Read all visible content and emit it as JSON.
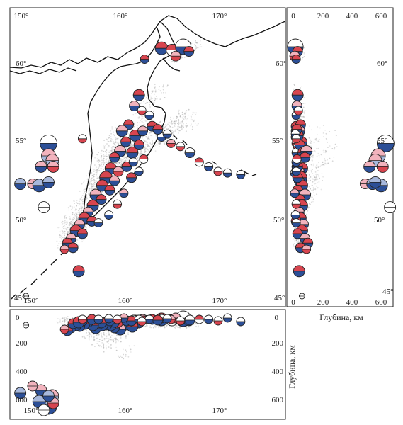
{
  "map_panel": {
    "lon_ticks_top": [
      "150°",
      "160°",
      "170°"
    ],
    "lon_ticks_bottom": [
      "150°",
      "160°",
      "170°"
    ],
    "lat_ticks_left": [
      "60°",
      "55°",
      "50°",
      "45°"
    ]
  },
  "depth_lat_panel": {
    "depth_ticks_top": [
      "0",
      "200",
      "400",
      "600"
    ],
    "depth_ticks_bottom": [
      "0",
      "200",
      "400",
      "600"
    ],
    "lat_ticks_right": [
      "60°",
      "55°",
      "50°",
      "45°"
    ],
    "xlabel": "Глубина, км"
  },
  "depth_lon_panel": {
    "depth_ticks_left": [
      "0",
      "200",
      "400",
      "600"
    ],
    "depth_ticks_right": [
      "0",
      "200",
      "400",
      "600"
    ],
    "lon_ticks_bottom": [
      "150°",
      "160°",
      "170°"
    ],
    "ylabel": "Глубина, км"
  },
  "colors": {
    "red": "#d7454f",
    "pink": "#f2b3bd",
    "blue": "#2c4f97",
    "lightblue": "#a7b8dc",
    "white": "#ffffff",
    "seismicity": "#9a9a9a",
    "coast": "#111111"
  },
  "mechanisms": [
    {
      "lon": 165.0,
      "lat": 60.9,
      "d": 20,
      "top": "red",
      "bot": "blue",
      "s": 9
    },
    {
      "lon": 166.1,
      "lat": 60.8,
      "d": 25,
      "top": "red",
      "bot": "white",
      "s": 8
    },
    {
      "lon": 167.3,
      "lat": 61.0,
      "d": 15,
      "top": "white",
      "bot": "blue",
      "s": 11
    },
    {
      "lon": 167.9,
      "lat": 60.7,
      "d": 30,
      "top": "red",
      "bot": "blue",
      "s": 7
    },
    {
      "lon": 166.5,
      "lat": 60.4,
      "d": 10,
      "top": "pink",
      "bot": "red",
      "s": 7
    },
    {
      "lon": 163.2,
      "lat": 60.2,
      "d": 20,
      "top": "red",
      "bot": "blue",
      "s": 6
    },
    {
      "lon": 162.6,
      "lat": 57.9,
      "d": 30,
      "top": "red",
      "bot": "blue",
      "s": 8
    },
    {
      "lon": 162.1,
      "lat": 57.2,
      "d": 25,
      "top": "pink",
      "bot": "blue",
      "s": 7
    },
    {
      "lon": 164.0,
      "lat": 55.9,
      "d": 20,
      "top": "red",
      "bot": "blue",
      "s": 7
    },
    {
      "lon": 165.0,
      "lat": 55.2,
      "d": 15,
      "top": "white",
      "bot": "blue",
      "s": 6
    },
    {
      "lon": 166.0,
      "lat": 54.8,
      "d": 20,
      "top": "pink",
      "bot": "red",
      "s": 6
    },
    {
      "lon": 167.0,
      "lat": 54.6,
      "d": 30,
      "top": "white",
      "bot": "red",
      "s": 6
    },
    {
      "lon": 168.0,
      "lat": 54.2,
      "d": 25,
      "top": "white",
      "bot": "blue",
      "s": 7
    },
    {
      "lon": 169.0,
      "lat": 53.6,
      "d": 20,
      "top": "red",
      "bot": "white",
      "s": 6
    },
    {
      "lon": 170.0,
      "lat": 53.3,
      "d": 20,
      "top": "white",
      "bot": "blue",
      "s": 6
    },
    {
      "lon": 171.0,
      "lat": 53.0,
      "d": 30,
      "top": "white",
      "bot": "red",
      "s": 6
    },
    {
      "lon": 172.0,
      "lat": 52.9,
      "d": 10,
      "top": "white",
      "bot": "blue",
      "s": 6
    },
    {
      "lon": 173.4,
      "lat": 52.8,
      "d": 35,
      "top": "white",
      "bot": "blue",
      "s": 6
    },
    {
      "lon": 161.5,
      "lat": 56.0,
      "d": 50,
      "top": "red",
      "bot": "blue",
      "s": 7
    },
    {
      "lon": 160.8,
      "lat": 55.6,
      "d": 40,
      "top": "pink",
      "bot": "blue",
      "s": 8
    },
    {
      "lon": 161.2,
      "lat": 54.9,
      "d": 60,
      "top": "red",
      "bot": "blue",
      "s": 7
    },
    {
      "lon": 162.2,
      "lat": 55.3,
      "d": 30,
      "top": "red",
      "bot": "blue",
      "s": 8
    },
    {
      "lon": 163.0,
      "lat": 55.6,
      "d": 20,
      "top": "pink",
      "bot": "blue",
      "s": 7
    },
    {
      "lon": 162.6,
      "lat": 54.7,
      "d": 45,
      "top": "red",
      "bot": "blue",
      "s": 7
    },
    {
      "lon": 161.9,
      "lat": 54.2,
      "d": 70,
      "top": "red",
      "bot": "blue",
      "s": 8
    },
    {
      "lon": 160.6,
      "lat": 54.3,
      "d": 90,
      "top": "pink",
      "bot": "blue",
      "s": 8
    },
    {
      "lon": 160.0,
      "lat": 53.9,
      "d": 80,
      "top": "red",
      "bot": "blue",
      "s": 7
    },
    {
      "lon": 159.6,
      "lat": 53.2,
      "d": 60,
      "top": "red",
      "bot": "blue",
      "s": 8
    },
    {
      "lon": 160.4,
      "lat": 53.0,
      "d": 40,
      "top": "pink",
      "bot": "red",
      "s": 7
    },
    {
      "lon": 161.3,
      "lat": 53.3,
      "d": 30,
      "top": "red",
      "bot": "blue",
      "s": 7
    },
    {
      "lon": 162.0,
      "lat": 53.6,
      "d": 20,
      "top": "white",
      "bot": "blue",
      "s": 6
    },
    {
      "lon": 163.1,
      "lat": 53.8,
      "d": 25,
      "top": "red",
      "bot": "white",
      "s": 6
    },
    {
      "lon": 159.1,
      "lat": 52.6,
      "d": 50,
      "top": "red",
      "bot": "blue",
      "s": 9
    },
    {
      "lon": 160.0,
      "lat": 52.4,
      "d": 40,
      "top": "pink",
      "bot": "blue",
      "s": 7
    },
    {
      "lon": 158.7,
      "lat": 52.1,
      "d": 60,
      "top": "red",
      "bot": "blue",
      "s": 8
    },
    {
      "lon": 159.5,
      "lat": 51.8,
      "d": 30,
      "top": "red",
      "bot": "blue",
      "s": 7
    },
    {
      "lon": 158.0,
      "lat": 51.5,
      "d": 80,
      "top": "pink",
      "bot": "blue",
      "s": 8
    },
    {
      "lon": 158.6,
      "lat": 51.2,
      "d": 45,
      "top": "red",
      "bot": "blue",
      "s": 7
    },
    {
      "lon": 157.7,
      "lat": 50.8,
      "d": 60,
      "top": "red",
      "bot": "blue",
      "s": 8
    },
    {
      "lon": 157.2,
      "lat": 50.4,
      "d": 40,
      "top": "pink",
      "bot": "blue",
      "s": 7
    },
    {
      "lon": 156.8,
      "lat": 50.0,
      "d": 50,
      "top": "red",
      "bot": "blue",
      "s": 8
    },
    {
      "lon": 157.6,
      "lat": 49.8,
      "d": 20,
      "top": "red",
      "bot": "blue",
      "s": 7
    },
    {
      "lon": 156.3,
      "lat": 49.6,
      "d": 70,
      "top": "pink",
      "bot": "blue",
      "s": 7
    },
    {
      "lon": 155.9,
      "lat": 49.2,
      "d": 60,
      "top": "red",
      "bot": "blue",
      "s": 8
    },
    {
      "lon": 156.6,
      "lat": 49.0,
      "d": 30,
      "top": "red",
      "bot": "blue",
      "s": 7
    },
    {
      "lon": 155.4,
      "lat": 48.7,
      "d": 80,
      "top": "pink",
      "bot": "blue",
      "s": 7
    },
    {
      "lon": 155.0,
      "lat": 48.4,
      "d": 100,
      "top": "red",
      "bot": "blue",
      "s": 7
    },
    {
      "lon": 155.6,
      "lat": 48.1,
      "d": 50,
      "top": "red",
      "bot": "blue",
      "s": 7
    },
    {
      "lon": 154.7,
      "lat": 48.0,
      "d": 90,
      "top": "pink",
      "bot": "red",
      "s": 6
    },
    {
      "lon": 156.2,
      "lat": 46.6,
      "d": 40,
      "top": "red",
      "bot": "blue",
      "s": 8
    },
    {
      "lon": 161.8,
      "lat": 52.6,
      "d": 30,
      "top": "red",
      "bot": "blue",
      "s": 7
    },
    {
      "lon": 162.6,
      "lat": 53.0,
      "d": 20,
      "top": "white",
      "bot": "blue",
      "s": 6
    },
    {
      "lon": 161.0,
      "lat": 51.6,
      "d": 10,
      "top": "pink",
      "bot": "blue",
      "s": 6
    },
    {
      "lon": 160.3,
      "lat": 50.9,
      "d": 20,
      "top": "white",
      "bot": "red",
      "s": 6
    },
    {
      "lon": 159.4,
      "lat": 50.2,
      "d": 15,
      "top": "white",
      "bot": "blue",
      "s": 6
    },
    {
      "lon": 158.3,
      "lat": 49.7,
      "d": 20,
      "top": "white",
      "bot": "blue",
      "s": 6
    },
    {
      "lon": 163.7,
      "lat": 56.6,
      "d": 20,
      "top": "white",
      "bot": "blue",
      "s": 6
    },
    {
      "lon": 162.9,
      "lat": 56.9,
      "d": 35,
      "top": "white",
      "bot": "red",
      "s": 6
    },
    {
      "lon": 164.6,
      "lat": 55.7,
      "d": 25,
      "top": "red",
      "bot": "blue",
      "s": 7
    },
    {
      "lon": 165.6,
      "lat": 55.4,
      "d": 15,
      "top": "white",
      "bot": "blue",
      "s": 6
    },
    {
      "lon": 156.6,
      "lat": 55.1,
      "d": 20,
      "top": "white",
      "bot": "red",
      "s": 6
    },
    {
      "lon": 153.0,
      "lat": 54.8,
      "d": 630,
      "top": "white",
      "bot": "blue",
      "s": 12
    },
    {
      "lon": 153.0,
      "lat": 54.0,
      "d": 580,
      "top": "pink",
      "bot": "lightblue",
      "s": 10
    },
    {
      "lon": 153.4,
      "lat": 53.7,
      "d": 560,
      "top": "pink",
      "bot": "lightblue",
      "s": 9
    },
    {
      "lon": 152.2,
      "lat": 53.3,
      "d": 520,
      "top": "pink",
      "bot": "blue",
      "s": 8
    },
    {
      "lon": 153.5,
      "lat": 53.3,
      "d": 610,
      "top": "pink",
      "bot": "red",
      "s": 8
    },
    {
      "lon": 151.3,
      "lat": 52.2,
      "d": 490,
      "top": "pink",
      "bot": "pink",
      "s": 7
    },
    {
      "lon": 150.0,
      "lat": 52.2,
      "d": 540,
      "top": "lightblue",
      "bot": "blue",
      "s": 8
    },
    {
      "lon": 152.0,
      "lat": 52.1,
      "d": 600,
      "top": "lightblue",
      "bot": "blue",
      "s": 9
    },
    {
      "lon": 153.0,
      "lat": 52.3,
      "d": 560,
      "top": "lightblue",
      "bot": "blue",
      "s": 8
    },
    {
      "lon": 152.5,
      "lat": 50.7,
      "d": 660,
      "top": "white",
      "bot": "white",
      "s": 8
    },
    {
      "lon": 150.6,
      "lat": 45.0,
      "d": 60,
      "top": "white",
      "bot": "white",
      "s": 4
    }
  ]
}
